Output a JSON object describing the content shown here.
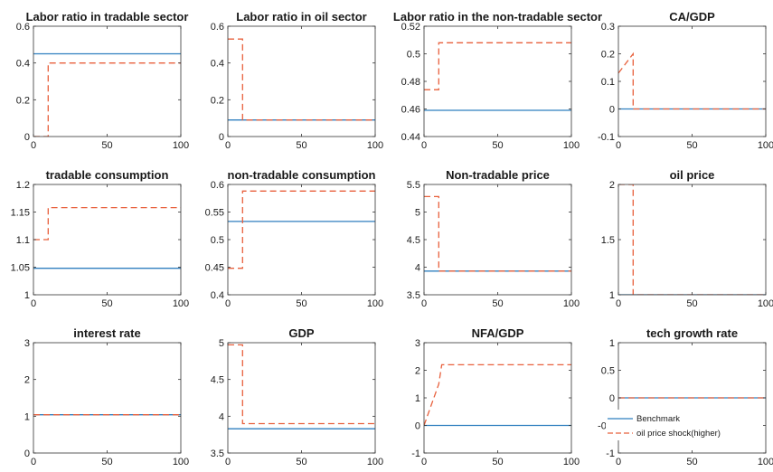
{
  "colors": {
    "benchmark": "#2f7fbf",
    "shock": "#e8603c"
  },
  "legend": {
    "entries": [
      "Benchmark",
      "oil price shock(higher)"
    ],
    "placement": "inside-left of panel 12"
  },
  "chart_data": [
    {
      "type": "line",
      "title": "Labor ratio in tradable sector",
      "xlim": [
        0,
        100
      ],
      "ylim": [
        0,
        0.6
      ],
      "xticks": [
        0,
        50,
        100
      ],
      "yticks": [
        0,
        0.2,
        0.4,
        0.6
      ],
      "xticklabels": [
        "0",
        "50",
        "100"
      ],
      "yticklabels": [
        "0",
        "0.2",
        "0.4",
        "0.6"
      ],
      "series": [
        {
          "name": "Benchmark",
          "x": [
            0,
            100
          ],
          "y": [
            0.45,
            0.45
          ]
        },
        {
          "name": "oil price shock(higher)",
          "x": [
            0,
            10,
            10,
            100
          ],
          "y": [
            0,
            0,
            0.4,
            0.4
          ]
        }
      ]
    },
    {
      "type": "line",
      "title": "Labor ratio in oil sector",
      "xlim": [
        0,
        100
      ],
      "ylim": [
        0,
        0.6
      ],
      "xticks": [
        0,
        50,
        100
      ],
      "yticks": [
        0,
        0.2,
        0.4,
        0.6
      ],
      "xticklabels": [
        "0",
        "50",
        "100"
      ],
      "yticklabels": [
        "0",
        "0.2",
        "0.4",
        "0.6"
      ],
      "series": [
        {
          "name": "Benchmark",
          "x": [
            0,
            100
          ],
          "y": [
            0.09,
            0.09
          ]
        },
        {
          "name": "oil price shock(higher)",
          "x": [
            0,
            10,
            10,
            100
          ],
          "y": [
            0.53,
            0.53,
            0.09,
            0.09
          ]
        }
      ]
    },
    {
      "type": "line",
      "title": "Labor ratio in the non-tradable sector",
      "xlim": [
        0,
        100
      ],
      "ylim": [
        0.44,
        0.52
      ],
      "xticks": [
        0,
        50,
        100
      ],
      "yticks": [
        0.44,
        0.46,
        0.48,
        0.5,
        0.52
      ],
      "xticklabels": [
        "0",
        "50",
        "100"
      ],
      "yticklabels": [
        "0.44",
        "0.46",
        "0.48",
        "0.5",
        "0.52"
      ],
      "series": [
        {
          "name": "Benchmark",
          "x": [
            0,
            100
          ],
          "y": [
            0.459,
            0.459
          ]
        },
        {
          "name": "oil price shock(higher)",
          "x": [
            0,
            10,
            10,
            100
          ],
          "y": [
            0.474,
            0.474,
            0.508,
            0.508
          ]
        }
      ]
    },
    {
      "type": "line",
      "title": "CA/GDP",
      "xlim": [
        0,
        100
      ],
      "ylim": [
        -0.1,
        0.3
      ],
      "xticks": [
        0,
        50,
        100
      ],
      "yticks": [
        -0.1,
        0,
        0.1,
        0.2,
        0.3
      ],
      "xticklabels": [
        "0",
        "50",
        "100"
      ],
      "yticklabels": [
        "-0.1",
        "0",
        "0.1",
        "0.2",
        "0.3"
      ],
      "series": [
        {
          "name": "Benchmark",
          "x": [
            0,
            100
          ],
          "y": [
            0,
            0
          ]
        },
        {
          "name": "oil price shock(higher)",
          "x": [
            0,
            10,
            10,
            100
          ],
          "y": [
            0.13,
            0.2,
            0,
            0
          ]
        }
      ]
    },
    {
      "type": "line",
      "title": "tradable consumption",
      "xlim": [
        0,
        100
      ],
      "ylim": [
        1,
        1.2
      ],
      "xticks": [
        0,
        50,
        100
      ],
      "yticks": [
        1,
        1.05,
        1.1,
        1.15,
        1.2
      ],
      "xticklabels": [
        "0",
        "50",
        "100"
      ],
      "yticklabels": [
        "1",
        "1.05",
        "1.1",
        "1.15",
        "1.2"
      ],
      "series": [
        {
          "name": "Benchmark",
          "x": [
            0,
            100
          ],
          "y": [
            1.048,
            1.048
          ]
        },
        {
          "name": "oil price shock(higher)",
          "x": [
            0,
            10,
            10,
            100
          ],
          "y": [
            1.1,
            1.1,
            1.158,
            1.158
          ]
        }
      ]
    },
    {
      "type": "line",
      "title": "non-tradable consumption",
      "xlim": [
        0,
        100
      ],
      "ylim": [
        0.4,
        0.6
      ],
      "xticks": [
        0,
        50,
        100
      ],
      "yticks": [
        0.4,
        0.45,
        0.5,
        0.55,
        0.6
      ],
      "xticklabels": [
        "0",
        "50",
        "100"
      ],
      "yticklabels": [
        "0.4",
        "0.45",
        "0.5",
        "0.55",
        "0.6"
      ],
      "series": [
        {
          "name": "Benchmark",
          "x": [
            0,
            100
          ],
          "y": [
            0.533,
            0.533
          ]
        },
        {
          "name": "oil price shock(higher)",
          "x": [
            0,
            10,
            10,
            100
          ],
          "y": [
            0.448,
            0.448,
            0.588,
            0.588
          ]
        }
      ]
    },
    {
      "type": "line",
      "title": "Non-tradable price",
      "xlim": [
        0,
        100
      ],
      "ylim": [
        3.5,
        5.5
      ],
      "xticks": [
        0,
        50,
        100
      ],
      "yticks": [
        3.5,
        4,
        4.5,
        5,
        5.5
      ],
      "xticklabels": [
        "0",
        "50",
        "100"
      ],
      "yticklabels": [
        "3.5",
        "4",
        "4.5",
        "5",
        "5.5"
      ],
      "series": [
        {
          "name": "Benchmark",
          "x": [
            0,
            100
          ],
          "y": [
            3.93,
            3.93
          ]
        },
        {
          "name": "oil price shock(higher)",
          "x": [
            0,
            10,
            10,
            100
          ],
          "y": [
            5.28,
            5.28,
            3.93,
            3.93
          ]
        }
      ]
    },
    {
      "type": "line",
      "title": "oil price",
      "xlim": [
        0,
        100
      ],
      "ylim": [
        1,
        2
      ],
      "xticks": [
        0,
        50,
        100
      ],
      "yticks": [
        1,
        1.5,
        2
      ],
      "xticklabels": [
        "0",
        "50",
        "100"
      ],
      "yticklabels": [
        "1",
        "1.5",
        "2"
      ],
      "series": [
        {
          "name": "Benchmark",
          "x": [
            0,
            100
          ],
          "y": [
            1,
            1
          ]
        },
        {
          "name": "oil price shock(higher)",
          "x": [
            0,
            10,
            10,
            100
          ],
          "y": [
            2,
            2,
            1,
            1
          ]
        }
      ]
    },
    {
      "type": "line",
      "title": "interest rate",
      "xlim": [
        0,
        100
      ],
      "ylim": [
        0,
        3
      ],
      "xticks": [
        0,
        50,
        100
      ],
      "yticks": [
        0,
        1,
        2,
        3
      ],
      "xticklabels": [
        "0",
        "50",
        "100"
      ],
      "yticklabels": [
        "0",
        "1",
        "2",
        "3"
      ],
      "series": [
        {
          "name": "Benchmark",
          "x": [
            0,
            100
          ],
          "y": [
            1.04,
            1.04
          ]
        },
        {
          "name": "oil price shock(higher)",
          "x": [
            0,
            100
          ],
          "y": [
            1.04,
            1.04
          ]
        }
      ]
    },
    {
      "type": "line",
      "title": "GDP",
      "xlim": [
        0,
        100
      ],
      "ylim": [
        3.5,
        5
      ],
      "xticks": [
        0,
        50,
        100
      ],
      "yticks": [
        3.5,
        4,
        4.5,
        5
      ],
      "xticklabels": [
        "0",
        "50",
        "100"
      ],
      "yticklabels": [
        "3.5",
        "4",
        "4.5",
        "5"
      ],
      "series": [
        {
          "name": "Benchmark",
          "x": [
            0,
            100
          ],
          "y": [
            3.83,
            3.83
          ]
        },
        {
          "name": "oil price shock(higher)",
          "x": [
            0,
            10,
            10,
            100
          ],
          "y": [
            4.97,
            4.97,
            3.9,
            3.9
          ]
        }
      ]
    },
    {
      "type": "line",
      "title": "NFA/GDP",
      "xlim": [
        0,
        100
      ],
      "ylim": [
        -1,
        3
      ],
      "xticks": [
        0,
        50,
        100
      ],
      "yticks": [
        -1,
        0,
        1,
        2,
        3
      ],
      "xticklabels": [
        "0",
        "50",
        "100"
      ],
      "yticklabels": [
        "-1",
        "0",
        "1",
        "2",
        "3"
      ],
      "series": [
        {
          "name": "Benchmark",
          "x": [
            0,
            100
          ],
          "y": [
            0,
            0
          ]
        },
        {
          "name": "oil price shock(higher)",
          "x": [
            0,
            10,
            12,
            100
          ],
          "y": [
            0,
            1.5,
            2.2,
            2.2
          ]
        }
      ]
    },
    {
      "type": "line",
      "title": "tech growth rate",
      "xlim": [
        0,
        100
      ],
      "ylim": [
        -1,
        1
      ],
      "xticks": [
        0,
        50,
        100
      ],
      "yticks": [
        -1,
        -0.5,
        0,
        0.5,
        1
      ],
      "xticklabels": [
        "0",
        "50",
        "100"
      ],
      "yticklabels": [
        "-1",
        "-0.5",
        "0",
        "0.5",
        "1"
      ],
      "series": [
        {
          "name": "Benchmark",
          "x": [
            0,
            100
          ],
          "y": [
            0,
            0
          ]
        },
        {
          "name": "oil price shock(higher)",
          "x": [
            0,
            100
          ],
          "y": [
            0,
            0
          ]
        }
      ],
      "has_legend": true
    }
  ]
}
